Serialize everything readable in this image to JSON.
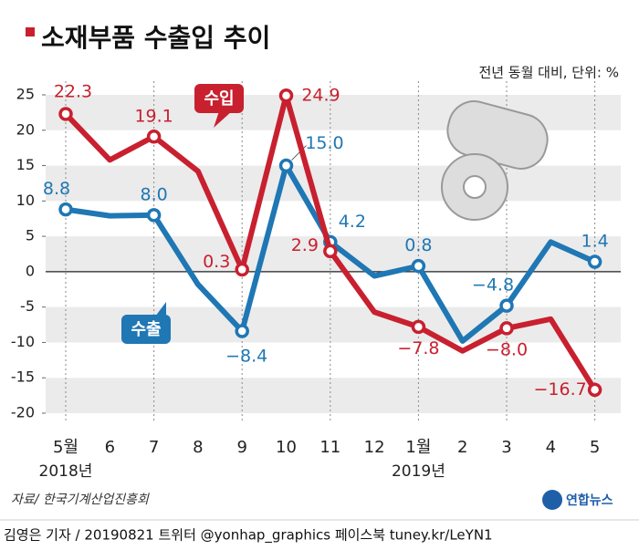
{
  "chart_data": {
    "type": "line",
    "title": "소재부품 수출입 추이",
    "unit_note": "전년 동월 대비, 단위: %",
    "categories": [
      "5월",
      "6",
      "7",
      "8",
      "9",
      "10",
      "11",
      "12",
      "1월",
      "2",
      "3",
      "4",
      "5"
    ],
    "year_labels": [
      {
        "index": 0,
        "label": "2018년"
      },
      {
        "index": 8,
        "label": "2019년"
      }
    ],
    "series": [
      {
        "name": "수출",
        "color": "#1f77b4",
        "values": [
          8.8,
          7.9,
          8.0,
          -1.8,
          -8.4,
          15.0,
          4.2,
          -0.6,
          0.8,
          -9.8,
          -4.8,
          4.2,
          1.4
        ],
        "value_labels": [
          "8.8",
          null,
          "8.0",
          null,
          "−8.4",
          "15.0",
          "4.2",
          null,
          "0.8",
          null,
          "−4.8",
          null,
          "1.4"
        ]
      },
      {
        "name": "수입",
        "color": "#c8202f",
        "values": [
          22.3,
          15.8,
          19.1,
          14.2,
          0.3,
          24.9,
          2.9,
          -5.7,
          -7.8,
          -11.2,
          -8.0,
          -6.7,
          -16.7
        ],
        "value_labels": [
          "22.3",
          null,
          "19.1",
          null,
          "0.3",
          "24.9",
          "2.9",
          null,
          "−7.8",
          null,
          "−8.0",
          null,
          "−16.7"
        ]
      }
    ],
    "ylim": [
      -20,
      25
    ],
    "yticks": [
      25,
      20,
      15,
      10,
      5,
      0,
      -5,
      -10,
      -15,
      -20
    ],
    "source": "자료/ 한국기계산업진흥회",
    "footer": "김영은 기자 / 20190821 트위터 @yonhap_graphics  페이스북 tuney.kr/LeYN1",
    "logo": "연합뉴스"
  }
}
